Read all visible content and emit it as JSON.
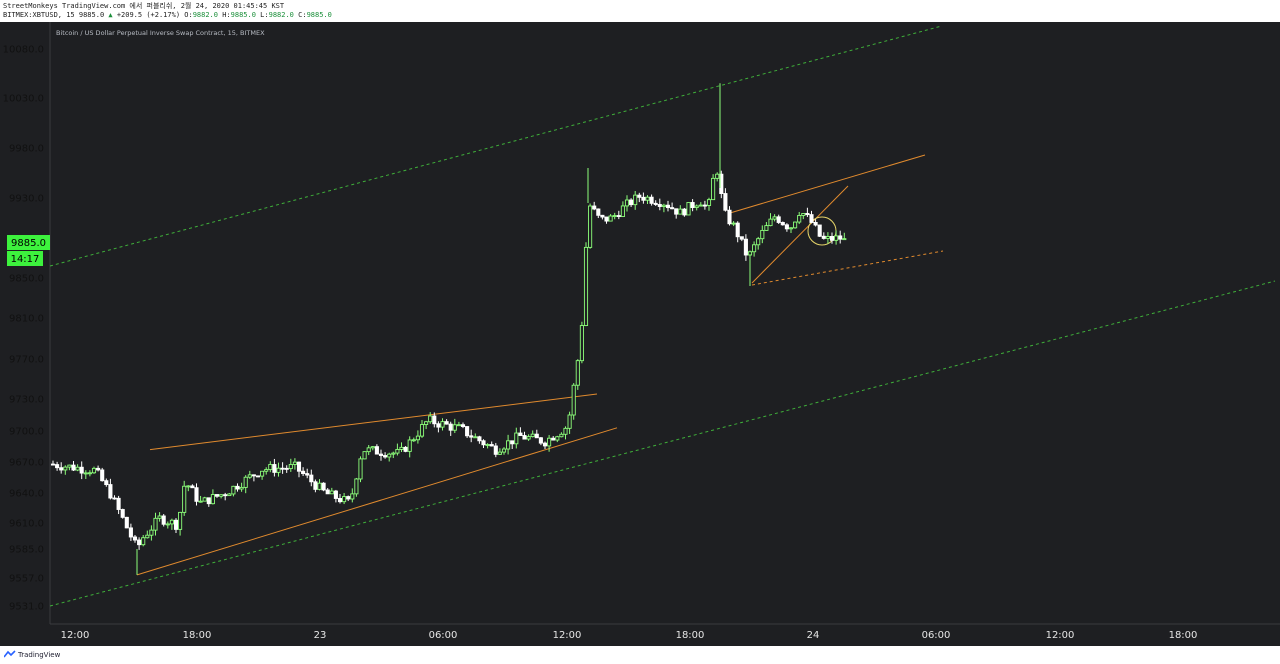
{
  "header": {
    "line1": "StreetMonkeys TradingView.com 에서 퍼블리쉬, 2월 24, 2020 01:45:45 KST",
    "symbol": "BITMEX:XBTUSD, 15",
    "last": "9885.0",
    "change": "+209.5 (+2.17%)",
    "o_label": "O:",
    "o": "9882.0",
    "h_label": "H:",
    "h": "9885.0",
    "l_label": "L:",
    "l": "9882.0",
    "c_label": "C:",
    "c": "9885.0"
  },
  "instrument_title": "Bitcoin / US Dollar Perpetual Inverse Swap Contract, 15, BITMEX",
  "price_badge": {
    "price": "9885.0",
    "countdown": "14:17"
  },
  "footer": {
    "brand": "TradingView"
  },
  "colors": {
    "background": "#1e1f22",
    "up": "#8cff7a",
    "down": "#ffffff",
    "trendline": "#e08a2e",
    "channel": "#3fae3a",
    "badge": "#3df23d"
  },
  "chart_data": {
    "type": "candlestick",
    "interval": "15",
    "y_axis_ticks": [
      "10080.0",
      "10030.0",
      "9980.0",
      "9930.0",
      "9850.0",
      "9810.0",
      "9770.0",
      "9730.0",
      "9700.0",
      "9670.0",
      "9640.0",
      "9610.0",
      "9585.0",
      "9557.0",
      "9531.0"
    ],
    "x_axis_ticks": [
      "12:00",
      "18:00",
      "23",
      "06:00",
      "12:00",
      "18:00",
      "24",
      "06:00",
      "12:00",
      "18:00"
    ],
    "current_price": 9885.0,
    "candle_anchors": [
      {
        "x": 50,
        "price": 9668
      },
      {
        "x": 95,
        "price": 9662
      },
      {
        "x": 110,
        "price": 9640
      },
      {
        "x": 137,
        "price": 9585
      },
      {
        "x": 142,
        "price": 9595
      },
      {
        "x": 160,
        "price": 9615
      },
      {
        "x": 178,
        "price": 9608
      },
      {
        "x": 185,
        "price": 9652
      },
      {
        "x": 200,
        "price": 9630
      },
      {
        "x": 225,
        "price": 9640
      },
      {
        "x": 262,
        "price": 9663
      },
      {
        "x": 295,
        "price": 9665
      },
      {
        "x": 325,
        "price": 9640
      },
      {
        "x": 350,
        "price": 9630
      },
      {
        "x": 362,
        "price": 9682
      },
      {
        "x": 400,
        "price": 9678
      },
      {
        "x": 428,
        "price": 9710
      },
      {
        "x": 460,
        "price": 9702
      },
      {
        "x": 495,
        "price": 9682
      },
      {
        "x": 520,
        "price": 9695
      },
      {
        "x": 545,
        "price": 9690
      },
      {
        "x": 568,
        "price": 9705
      },
      {
        "x": 578,
        "price": 9770
      },
      {
        "x": 583,
        "price": 9815
      },
      {
        "x": 588,
        "price": 9925
      },
      {
        "x": 600,
        "price": 9908
      },
      {
        "x": 612,
        "price": 9910
      },
      {
        "x": 625,
        "price": 9922
      },
      {
        "x": 640,
        "price": 9932
      },
      {
        "x": 665,
        "price": 9925
      },
      {
        "x": 680,
        "price": 9915
      },
      {
        "x": 700,
        "price": 9928
      },
      {
        "x": 708,
        "price": 9918
      },
      {
        "x": 716,
        "price": 9965
      },
      {
        "x": 724,
        "price": 9915
      },
      {
        "x": 735,
        "price": 9900
      },
      {
        "x": 748,
        "price": 9870
      },
      {
        "x": 760,
        "price": 9892
      },
      {
        "x": 775,
        "price": 9912
      },
      {
        "x": 790,
        "price": 9900
      },
      {
        "x": 800,
        "price": 9918
      },
      {
        "x": 812,
        "price": 9905
      },
      {
        "x": 822,
        "price": 9888
      },
      {
        "x": 840,
        "price": 9890
      },
      {
        "x": 848,
        "price": 9885
      }
    ],
    "spikes": [
      {
        "x": 588,
        "price": 9960
      },
      {
        "x": 720,
        "price": 10045
      },
      {
        "x": 137,
        "price": 9560
      },
      {
        "x": 750,
        "price": 9842
      }
    ],
    "trendlines": [
      {
        "name": "lower wedge top",
        "style": "solid",
        "color": "#e08a2e",
        "points": [
          {
            "x": 150,
            "price": 9682
          },
          {
            "x": 597,
            "price": 9735
          }
        ]
      },
      {
        "name": "lower wedge bottom",
        "style": "solid",
        "color": "#e08a2e",
        "points": [
          {
            "x": 137,
            "price": 9560
          },
          {
            "x": 617,
            "price": 9703
          }
        ]
      },
      {
        "name": "upper flag top",
        "style": "solid",
        "color": "#e08a2e",
        "points": [
          {
            "x": 730,
            "price": 9915
          },
          {
            "x": 925,
            "price": 9973
          }
        ]
      },
      {
        "name": "upper flag rising",
        "style": "solid",
        "color": "#e08a2e",
        "points": [
          {
            "x": 752,
            "price": 9845
          },
          {
            "x": 848,
            "price": 9942
          }
        ]
      },
      {
        "name": "upper flag bottom",
        "style": "dashed",
        "color": "#e08a2e",
        "points": [
          {
            "x": 752,
            "price": 9843
          },
          {
            "x": 943,
            "price": 9877
          }
        ]
      },
      {
        "name": "channel top",
        "style": "dashed",
        "color": "#3fae3a",
        "points": [
          {
            "x": 50,
            "price": 9862
          },
          {
            "x": 940,
            "price": 10103
          }
        ]
      },
      {
        "name": "channel bottom",
        "style": "dashed",
        "color": "#3fae3a",
        "points": [
          {
            "x": 50,
            "price": 9531
          },
          {
            "x": 1275,
            "price": 9847
          }
        ]
      }
    ],
    "annotations": [
      {
        "type": "circle",
        "x": 822,
        "price": 9897,
        "color": "#e8d66a"
      }
    ]
  }
}
